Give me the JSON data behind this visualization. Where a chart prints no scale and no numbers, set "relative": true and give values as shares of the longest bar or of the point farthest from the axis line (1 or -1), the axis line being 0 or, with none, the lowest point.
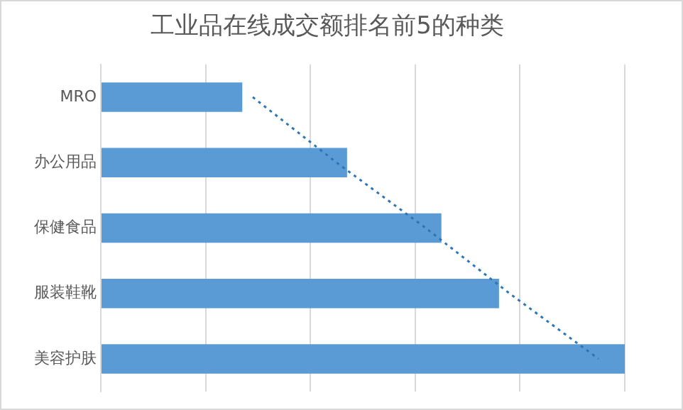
{
  "chart_data": {
    "type": "bar",
    "orientation": "horizontal",
    "relative": true,
    "title": "工业品在线成交额排名前5的种类",
    "categories": [
      "MRO",
      "办公用品",
      "保健食品",
      "服装鞋靴",
      "美容护肤"
    ],
    "series": [
      {
        "color": "#5b9bd5",
        "values": [
          0.27,
          0.47,
          0.65,
          0.76,
          1
        ]
      },
      {
        "type": "line",
        "color": "#2e75b6",
        "line_style": "dotted",
        "marker": "none",
        "values": [
          0.29,
          0.45,
          0.62,
          0.78,
          0.95
        ]
      }
    ],
    "grid": "x",
    "legend": false
  }
}
